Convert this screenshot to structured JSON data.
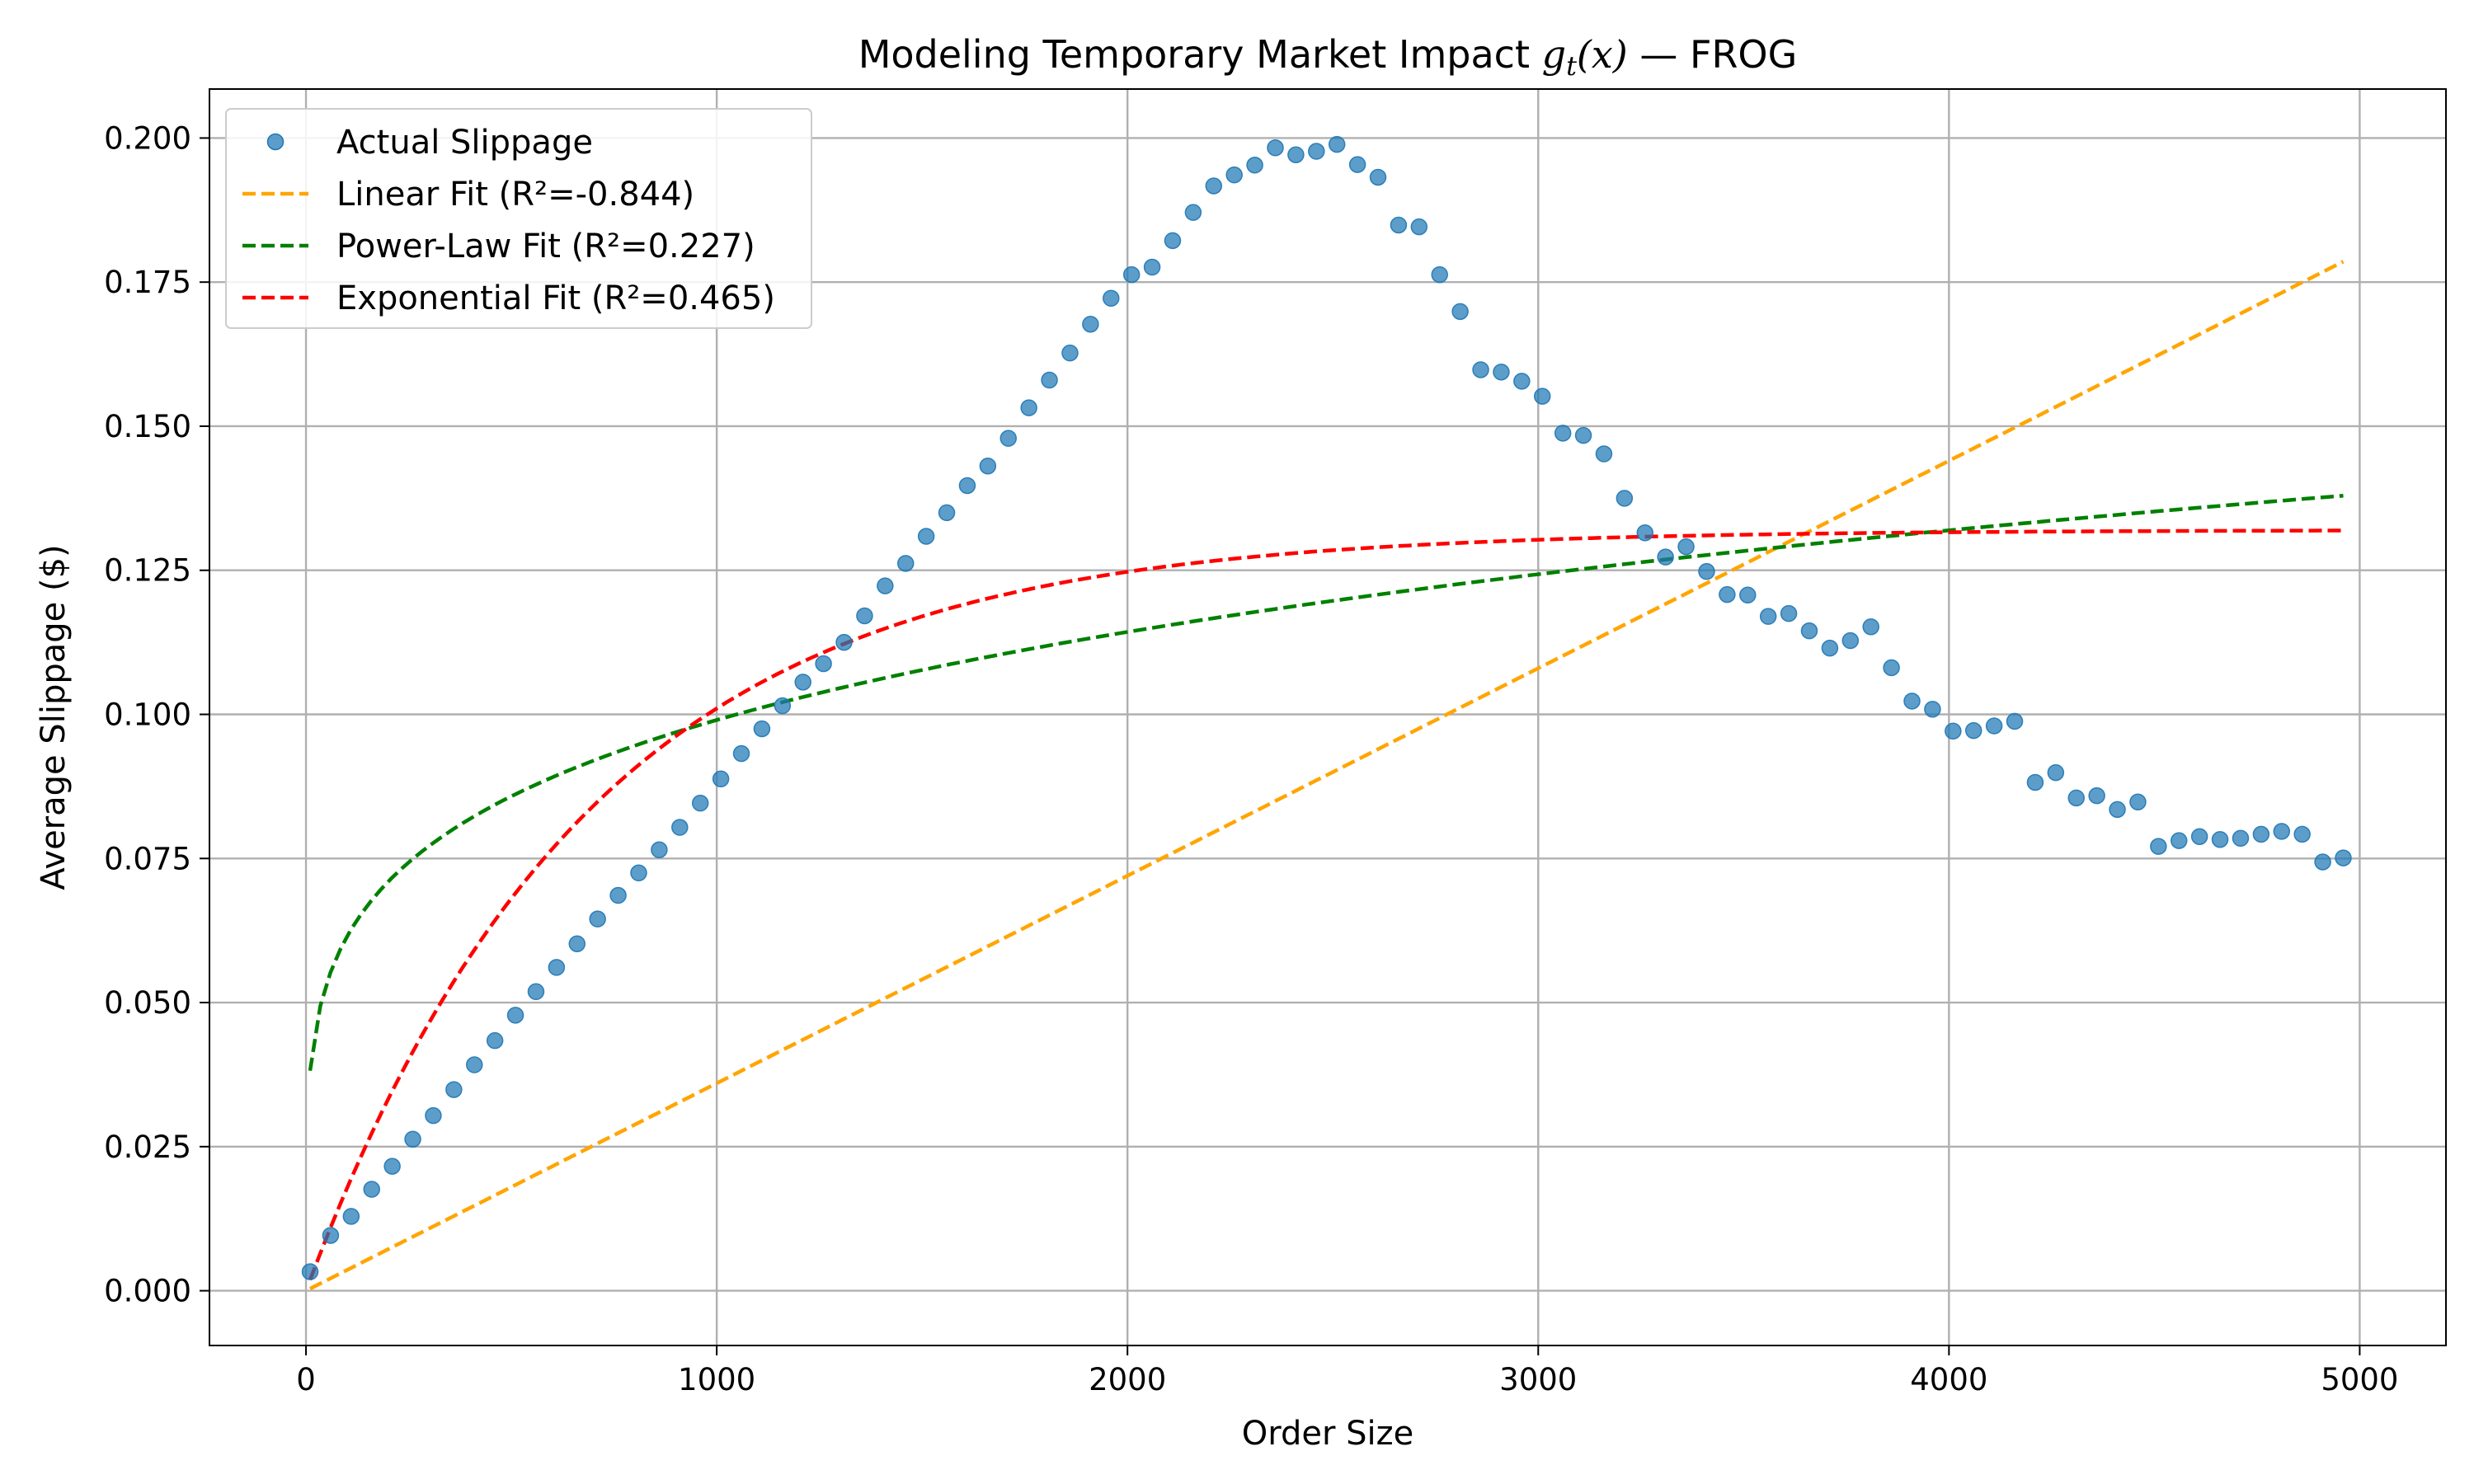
{
  "chart_data": {
    "type": "scatter",
    "title": "Modeling Temporary Market Impact ",
    "title_math_g": "g",
    "title_math_sub": "t",
    "title_math_arg": "(x)",
    "title_suffix": " — FROG",
    "xlabel": "Order Size",
    "ylabel": "Average Slippage ($)",
    "xlim": [
      -235,
      5210
    ],
    "ylim": [
      -0.0095,
      0.2085
    ],
    "xticks": [
      0,
      1000,
      2000,
      3000,
      4000,
      5000
    ],
    "xtick_labels": [
      "0",
      "1000",
      "2000",
      "3000",
      "4000",
      "5000"
    ],
    "yticks": [
      0.0,
      0.025,
      0.05,
      0.075,
      0.1,
      0.125,
      0.15,
      0.175,
      0.2
    ],
    "ytick_labels": [
      "0.000",
      "0.025",
      "0.050",
      "0.075",
      "0.100",
      "0.125",
      "0.150",
      "0.175",
      "0.200"
    ],
    "grid": true,
    "legend_position": "top-left",
    "legend": [
      {
        "label": "Actual Slippage",
        "kind": "marker",
        "color": "#1f77b4"
      },
      {
        "label": "Linear Fit (R²=-0.844)",
        "kind": "dashed",
        "color": "#ffa500"
      },
      {
        "label": "Power-Law Fit (R²=0.227)",
        "kind": "dashed",
        "color": "#008000"
      },
      {
        "label": "Exponential Fit (R²=0.465)",
        "kind": "dashed",
        "color": "#ff0000"
      }
    ],
    "series": [
      {
        "name": "Actual Slippage",
        "kind": "scatter",
        "color": "#1f77b4",
        "x": [
          10,
          60,
          110,
          160,
          210,
          260,
          310,
          360,
          410,
          460,
          510,
          560,
          610,
          660,
          710,
          760,
          810,
          860,
          910,
          960,
          1010,
          1060,
          1110,
          1160,
          1210,
          1260,
          1310,
          1360,
          1410,
          1460,
          1510,
          1560,
          1610,
          1660,
          1710,
          1760,
          1810,
          1860,
          1910,
          1960,
          2010,
          2060,
          2110,
          2160,
          2210,
          2260,
          2310,
          2360,
          2410,
          2460,
          2510,
          2560,
          2610,
          2660,
          2710,
          2760,
          2810,
          2860,
          2910,
          2960,
          3010,
          3060,
          3110,
          3160,
          3210,
          3260,
          3310,
          3360,
          3410,
          3460,
          3510,
          3560,
          3610,
          3660,
          3710,
          3760,
          3810,
          3860,
          3910,
          3960,
          4010,
          4060,
          4110,
          4160,
          4210,
          4260,
          4310,
          4360,
          4410,
          4460,
          4510,
          4560,
          4610,
          4660,
          4710,
          4760,
          4810,
          4860,
          4910,
          4960
        ],
        "y": [
          0.0033,
          0.0096,
          0.0129,
          0.0176,
          0.0216,
          0.0263,
          0.0304,
          0.0349,
          0.0392,
          0.0434,
          0.0478,
          0.0519,
          0.0561,
          0.0602,
          0.0645,
          0.0686,
          0.0725,
          0.0765,
          0.0804,
          0.0846,
          0.0888,
          0.0932,
          0.0975,
          0.1015,
          0.1056,
          0.1088,
          0.1125,
          0.1171,
          0.1223,
          0.1262,
          0.1309,
          0.135,
          0.1397,
          0.1431,
          0.1479,
          0.1532,
          0.158,
          0.1627,
          0.1677,
          0.1722,
          0.1763,
          0.1776,
          0.1822,
          0.1871,
          0.1917,
          0.1936,
          0.1953,
          0.1983,
          0.1971,
          0.1977,
          0.1989,
          0.1954,
          0.1932,
          0.1849,
          0.1846,
          0.1763,
          0.1699,
          0.1598,
          0.1594,
          0.1578,
          0.1552,
          0.1488,
          0.1484,
          0.1452,
          0.1375,
          0.1315,
          0.1273,
          0.1291,
          0.1248,
          0.1208,
          0.1207,
          0.117,
          0.1175,
          0.1145,
          0.1115,
          0.1128,
          0.1152,
          0.1081,
          0.1023,
          0.1009,
          0.0971,
          0.0972,
          0.098,
          0.0988,
          0.0882,
          0.0899,
          0.0855,
          0.0859,
          0.0835,
          0.0848,
          0.0771,
          0.0781,
          0.0788,
          0.0783,
          0.0785,
          0.0792,
          0.0797,
          0.0792,
          0.0744,
          0.0751
        ]
      },
      {
        "name": "Linear Fit (R²=-0.844)",
        "kind": "line",
        "color": "#ffa500",
        "slope": 3.6e-05,
        "intercept": 0.0
      },
      {
        "name": "Power-Law Fit (R²=0.227)",
        "kind": "line",
        "color": "#008000",
        "coef": 0.0237,
        "exponent": 0.207
      },
      {
        "name": "Exponential Fit (R²=0.465)",
        "kind": "line",
        "color": "#ff0000",
        "amplitude": 0.132,
        "rate": 0.00145
      }
    ],
    "fit_x_range": [
      10,
      4960
    ]
  }
}
